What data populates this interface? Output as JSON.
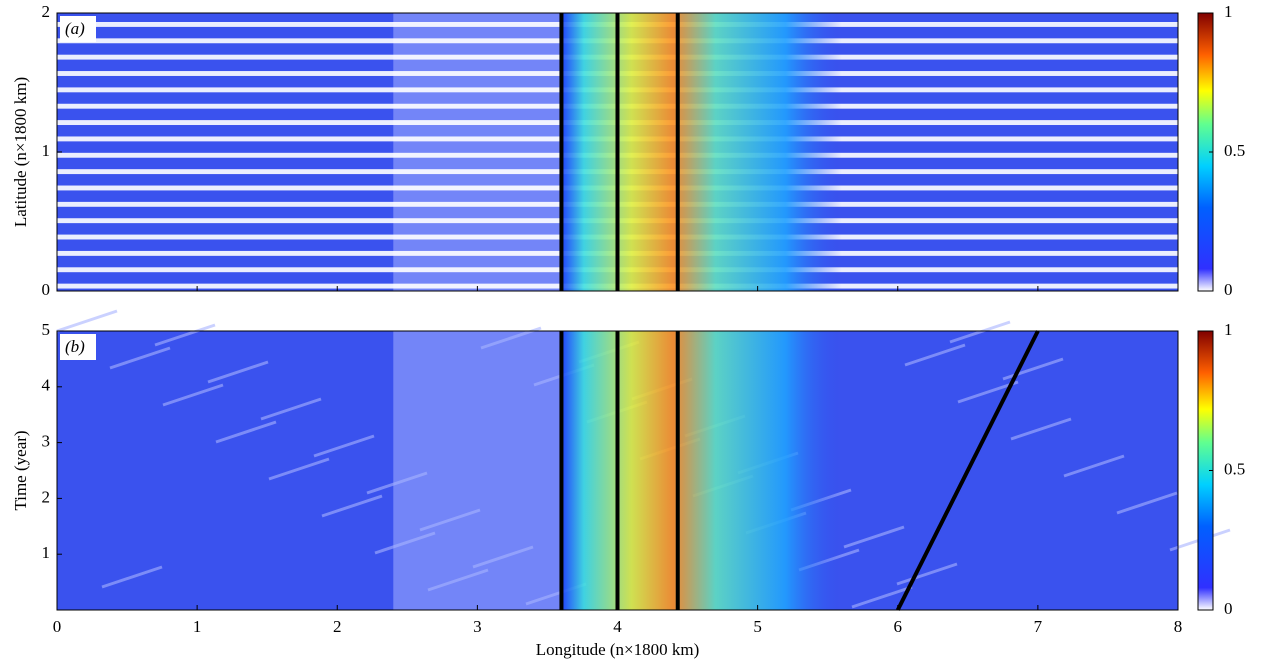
{
  "chart_data": [
    {
      "type": "heatmap",
      "panel_label": "(a)",
      "ylabel": "Latitude (n×1800 km)",
      "xlim": [
        0,
        8
      ],
      "ylim": [
        0,
        2
      ],
      "xticks": [
        0,
        1,
        2,
        3,
        4,
        5,
        6,
        7,
        8
      ],
      "show_xtick_labels": false,
      "yticks": [
        0,
        1,
        2
      ],
      "vlines": [
        3.6,
        4.0,
        4.43
      ],
      "stripes": true,
      "clim": [
        0,
        1
      ],
      "cticks": [
        0,
        0.5,
        1
      ]
    },
    {
      "type": "heatmap",
      "panel_label": "(b)",
      "ylabel": "Time (year)",
      "xlabel": "Longitude (n×1800 km)",
      "xlim": [
        0,
        8
      ],
      "ylim": [
        0,
        5
      ],
      "xticks": [
        0,
        1,
        2,
        3,
        4,
        5,
        6,
        7,
        8
      ],
      "show_xtick_labels": true,
      "yticks": [
        1,
        2,
        3,
        4,
        5
      ],
      "vlines": [
        3.6,
        4.0,
        4.43
      ],
      "stripes": false,
      "line": {
        "x": [
          6,
          7
        ],
        "y": [
          0,
          5
        ]
      },
      "clim": [
        0,
        1
      ],
      "cticks": [
        0,
        0.5,
        1
      ]
    }
  ]
}
